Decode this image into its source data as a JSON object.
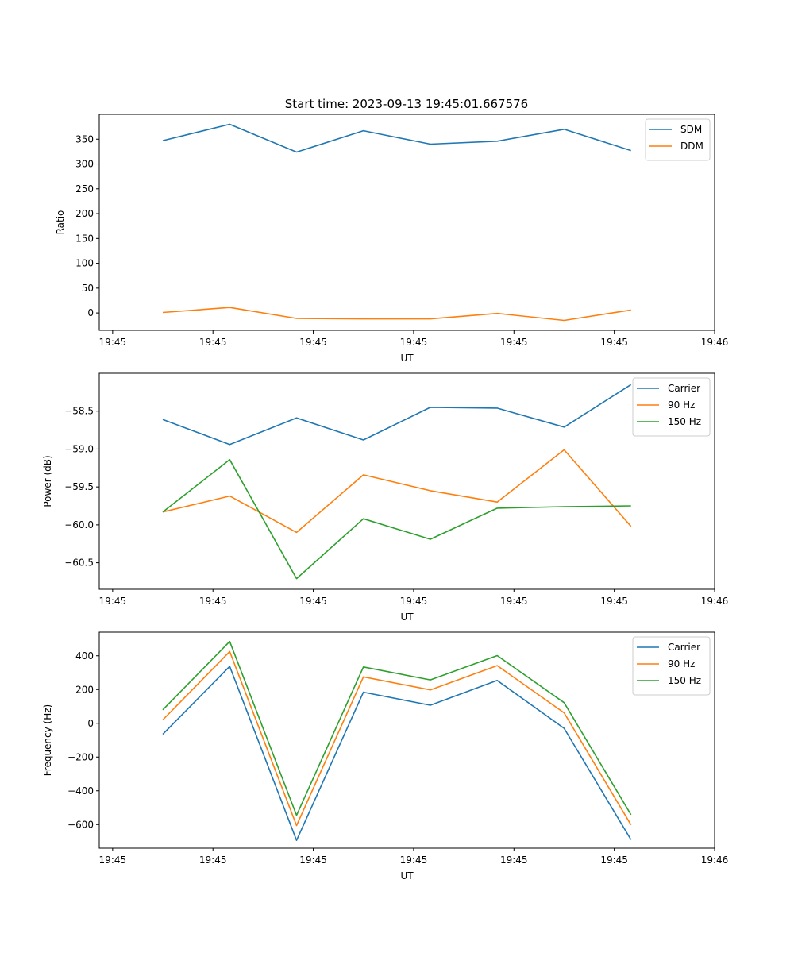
{
  "figure_title": "Start time: 2023-09-13 19:45:01.667576",
  "chart_data": [
    {
      "type": "line",
      "title": "Start time: 2023-09-13 19:45:01.667576",
      "xlabel": "UT",
      "ylabel": "Ratio",
      "xlim": [
        -0.2,
        9.0
      ],
      "ylim": [
        -35,
        400
      ],
      "x": [
        0.75,
        1.75,
        2.75,
        3.75,
        4.75,
        5.75,
        6.75,
        7.75
      ],
      "xticks": [
        {
          "v": 0,
          "label": "19:45"
        },
        {
          "v": 1.5,
          "label": "19:45"
        },
        {
          "v": 3.0,
          "label": "19:45"
        },
        {
          "v": 4.5,
          "label": "19:45"
        },
        {
          "v": 6.0,
          "label": "19:45"
        },
        {
          "v": 7.5,
          "label": "19:45"
        },
        {
          "v": 9.0,
          "label": "19:46"
        }
      ],
      "yticks": [
        {
          "v": 0,
          "label": "0"
        },
        {
          "v": 50,
          "label": "50"
        },
        {
          "v": 100,
          "label": "100"
        },
        {
          "v": 150,
          "label": "150"
        },
        {
          "v": 200,
          "label": "200"
        },
        {
          "v": 250,
          "label": "250"
        },
        {
          "v": 300,
          "label": "300"
        },
        {
          "v": 350,
          "label": "350"
        }
      ],
      "legend_position": "top-right",
      "series": [
        {
          "name": "SDM",
          "color": "#1f77b4",
          "values": [
            347,
            380,
            324,
            367,
            340,
            346,
            370,
            327
          ]
        },
        {
          "name": "DDM",
          "color": "#ff7f0e",
          "values": [
            1,
            11,
            -11,
            -12,
            -12,
            -1,
            -15,
            6
          ]
        }
      ]
    },
    {
      "type": "line",
      "title": "",
      "xlabel": "UT",
      "ylabel": "Power (dB)",
      "xlim": [
        -0.2,
        9.0
      ],
      "ylim": [
        -60.85,
        -58.0
      ],
      "x": [
        0.75,
        1.75,
        2.75,
        3.75,
        4.75,
        5.75,
        6.75,
        7.75
      ],
      "xticks": [
        {
          "v": 0,
          "label": "19:45"
        },
        {
          "v": 1.5,
          "label": "19:45"
        },
        {
          "v": 3.0,
          "label": "19:45"
        },
        {
          "v": 4.5,
          "label": "19:45"
        },
        {
          "v": 6.0,
          "label": "19:45"
        },
        {
          "v": 7.5,
          "label": "19:45"
        },
        {
          "v": 9.0,
          "label": "19:46"
        }
      ],
      "yticks": [
        {
          "v": -60.5,
          "label": "−60.5"
        },
        {
          "v": -60.0,
          "label": "−60.0"
        },
        {
          "v": -59.5,
          "label": "−59.5"
        },
        {
          "v": -59.0,
          "label": "−59.0"
        },
        {
          "v": -58.5,
          "label": "−58.5"
        }
      ],
      "legend_position": "top-right",
      "series": [
        {
          "name": "Carrier",
          "color": "#1f77b4",
          "values": [
            -58.61,
            -58.94,
            -58.59,
            -58.88,
            -58.45,
            -58.46,
            -58.71,
            -58.15
          ]
        },
        {
          "name": "90 Hz",
          "color": "#ff7f0e",
          "values": [
            -59.83,
            -59.62,
            -60.1,
            -59.34,
            -59.55,
            -59.7,
            -59.01,
            -60.02
          ]
        },
        {
          "name": "150 Hz",
          "color": "#2ca02c",
          "values": [
            -59.83,
            -59.14,
            -60.71,
            -59.92,
            -60.19,
            -59.78,
            -59.76,
            -59.75
          ]
        }
      ]
    },
    {
      "type": "line",
      "title": "",
      "xlabel": "UT",
      "ylabel": "Frequency (Hz)",
      "xlim": [
        -0.2,
        9.0
      ],
      "ylim": [
        -740,
        540
      ],
      "x": [
        0.75,
        1.75,
        2.75,
        3.75,
        4.75,
        5.75,
        6.75,
        7.75
      ],
      "xticks": [
        {
          "v": 0,
          "label": "19:45"
        },
        {
          "v": 1.5,
          "label": "19:45"
        },
        {
          "v": 3.0,
          "label": "19:45"
        },
        {
          "v": 4.5,
          "label": "19:45"
        },
        {
          "v": 6.0,
          "label": "19:45"
        },
        {
          "v": 7.5,
          "label": "19:45"
        },
        {
          "v": 9.0,
          "label": "19:46"
        }
      ],
      "yticks": [
        {
          "v": -600,
          "label": "−600"
        },
        {
          "v": -400,
          "label": "−400"
        },
        {
          "v": -200,
          "label": "−200"
        },
        {
          "v": 0,
          "label": "0"
        },
        {
          "v": 200,
          "label": "200"
        },
        {
          "v": 400,
          "label": "400"
        }
      ],
      "legend_position": "top-right",
      "series": [
        {
          "name": "Carrier",
          "color": "#1f77b4",
          "values": [
            -65,
            337,
            -694,
            184,
            107,
            254,
            -30,
            -690
          ]
        },
        {
          "name": "90 Hz",
          "color": "#ff7f0e",
          "values": [
            20,
            425,
            -606,
            275,
            198,
            342,
            62,
            -602
          ]
        },
        {
          "name": "150 Hz",
          "color": "#2ca02c",
          "values": [
            80,
            485,
            -545,
            334,
            257,
            401,
            122,
            -542
          ]
        }
      ]
    }
  ]
}
